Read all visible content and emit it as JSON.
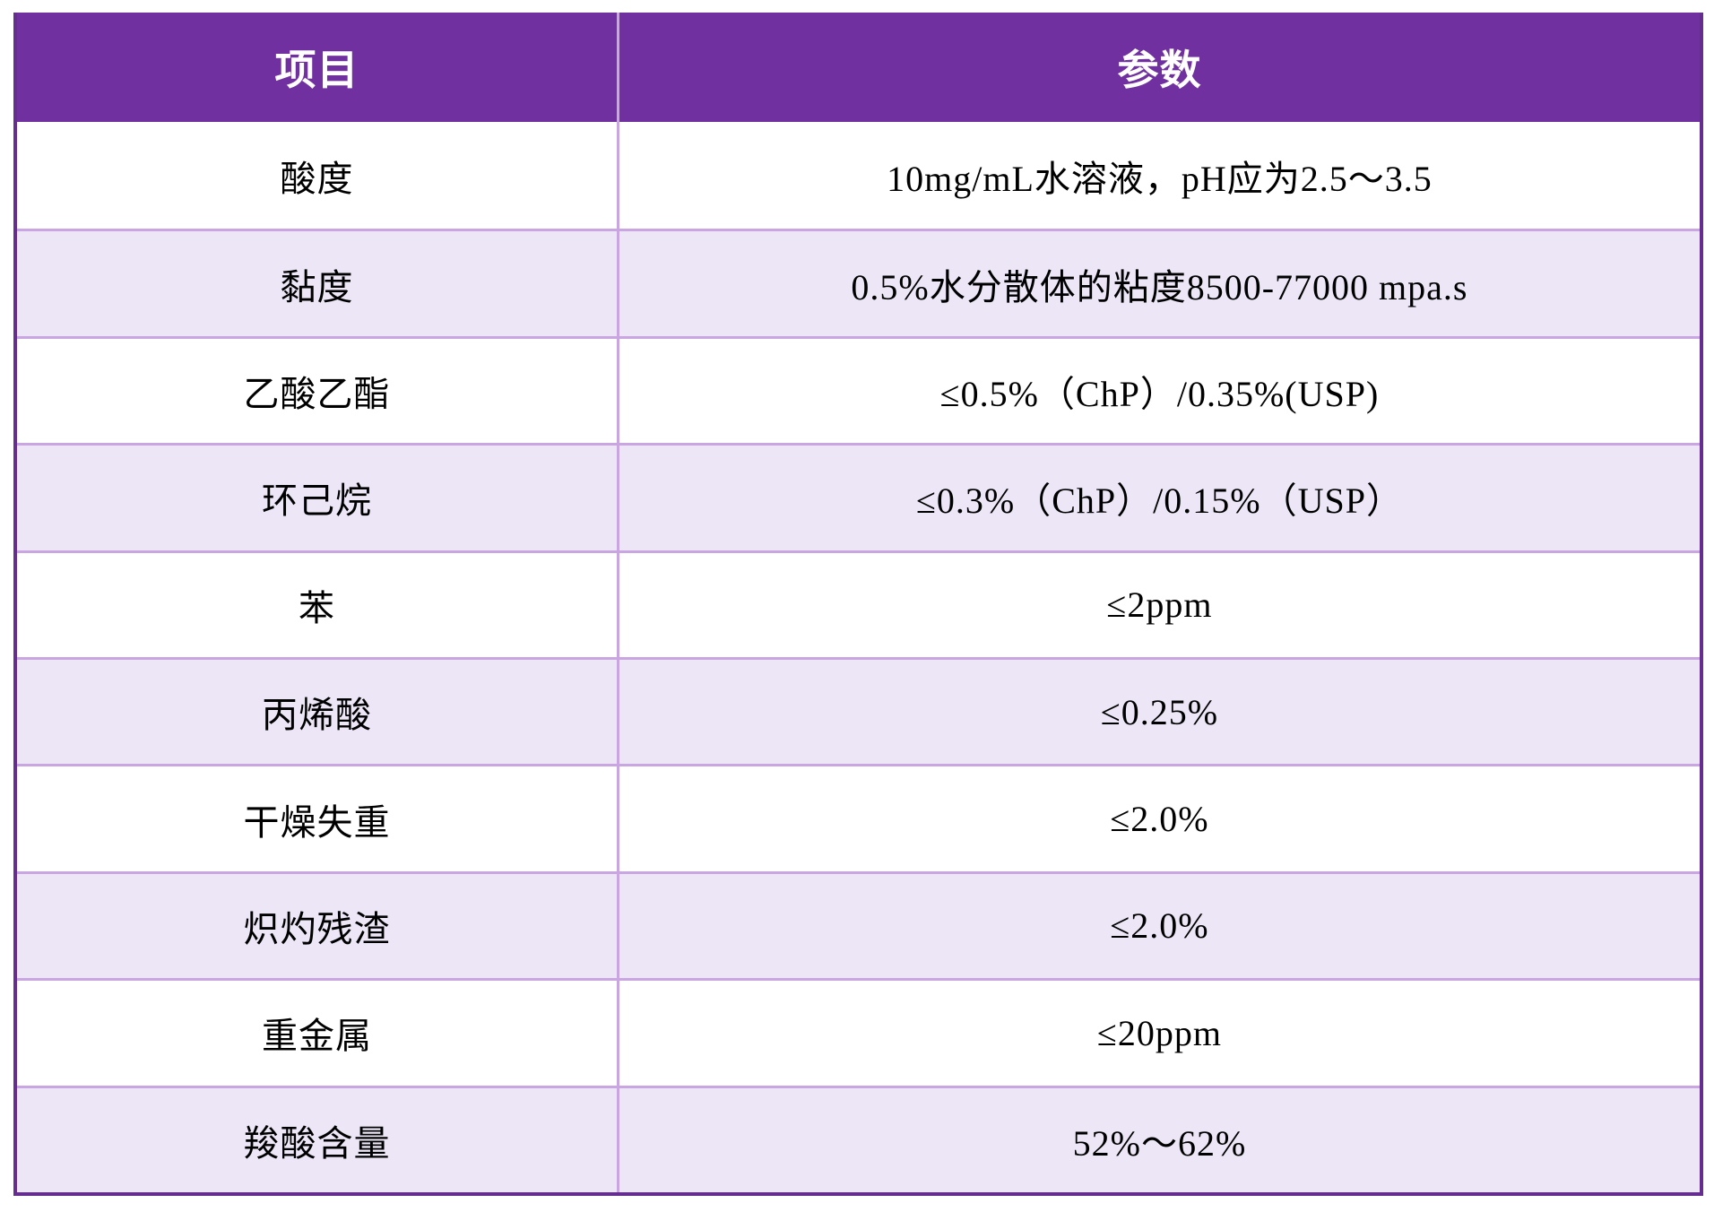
{
  "table": {
    "headers": {
      "item": "项目",
      "param": "参数"
    },
    "rows": [
      {
        "item": "酸度",
        "param": "10mg/mL水溶液，pH应为2.5～3.5"
      },
      {
        "item": "黏度",
        "param": "0.5%水分散体的粘度8500-77000 mpa.s"
      },
      {
        "item": "乙酸乙酯",
        "param": "≤0.5%（ChP）/0.35%(USP)"
      },
      {
        "item": "环己烷",
        "param": "≤0.3%（ChP）/0.15%（USP）"
      },
      {
        "item": "苯",
        "param": "≤2ppm"
      },
      {
        "item": "丙烯酸",
        "param": "≤0.25%"
      },
      {
        "item": "干燥失重",
        "param": "≤2.0%"
      },
      {
        "item": "炽灼残渣",
        "param": "≤2.0%"
      },
      {
        "item": "重金属",
        "param": "≤20ppm"
      },
      {
        "item": "羧酸含量",
        "param": "52%～62%"
      }
    ],
    "colors": {
      "header_bg": "#7030A0",
      "header_text": "#FFFFFF",
      "row_bg": "#FFFFFF",
      "row_alt_bg": "#EDE6F6",
      "grid_line": "#C9A6E1",
      "outer_border": "#662D91",
      "body_text": "#000000"
    }
  }
}
